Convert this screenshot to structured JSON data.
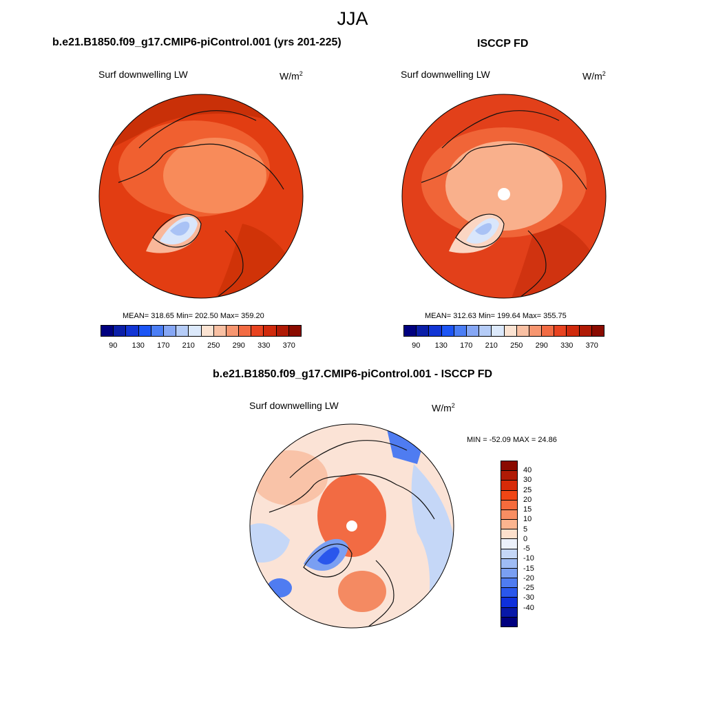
{
  "title": "JJA",
  "panels": [
    {
      "title": "b.e21.B1850.f09_g17.CMIP6-piControl.001 (yrs 201-225)",
      "subtitle": "Surf downwelling LW",
      "units": "W/m",
      "units_sup": "2",
      "stats": "MEAN= 318.65  Min= 202.50  Max= 359.20",
      "base_color": "#e63e14"
    },
    {
      "title": "ISCCP FD",
      "subtitle": "Surf downwelling LW",
      "units": "W/m",
      "units_sup": "2",
      "stats": "MEAN= 312.63  Min= 199.64  Max= 355.75",
      "base_color": "#e2401a"
    },
    {
      "title": "b.e21.B1850.f09_g17.CMIP6-piControl.001 - ISCCP FD",
      "subtitle": "Surf downwelling LW",
      "units": "W/m",
      "units_sup": "2",
      "stats": "MIN = -52.09 MAX =  24.86",
      "base_color": "#fbe3d6"
    }
  ],
  "colorbar_abs": {
    "colors": [
      "#00007f",
      "#0b1fa8",
      "#1235d4",
      "#1c55f5",
      "#4b7ef5",
      "#86a7f5",
      "#b5ccf7",
      "#dce9fb",
      "#fbe3d2",
      "#f9c0a3",
      "#f79670",
      "#f26b43",
      "#e84320",
      "#d02a0c",
      "#b01a05",
      "#8a0b00"
    ],
    "labels": [
      "90",
      "130",
      "170",
      "210",
      "250",
      "290",
      "330",
      "370"
    ]
  },
  "colorbar_diff": {
    "colors": [
      "#8a0b00",
      "#b01a05",
      "#d72a08",
      "#f04615",
      "#f56b3c",
      "#f88e63",
      "#fbb48f",
      "#fde0cc",
      "#ecf1fb",
      "#c5d7f7",
      "#9fbcf5",
      "#7a9ff2",
      "#4f7cf1",
      "#2a57ec",
      "#0f30dc",
      "#0818a8",
      "#00007f"
    ],
    "labels": [
      "40",
      "30",
      "25",
      "20",
      "15",
      "10",
      "5",
      "0",
      "-5",
      "-10",
      "-15",
      "-20",
      "-25",
      "-30",
      "-40"
    ]
  }
}
